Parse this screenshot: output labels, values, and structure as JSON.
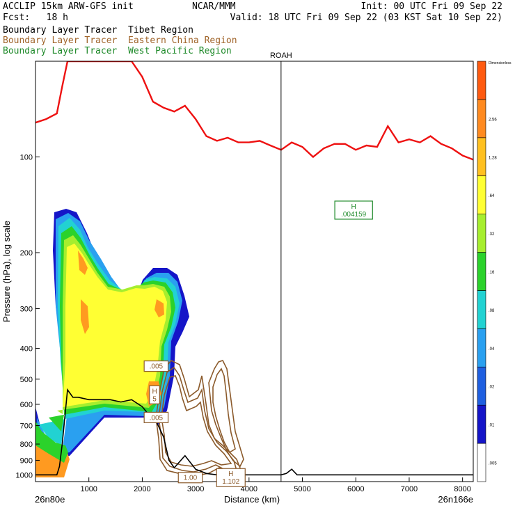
{
  "header": {
    "model": "ACCLIP 15km ARW-GFS init",
    "org": "NCAR/MMM",
    "init": "Init: 00 UTC Fri 09 Sep 22",
    "fcst": "Fcst:   18 h",
    "valid": "Valid: 18 UTC Fri 09 Sep 22 (03 KST Sat 10 Sep 22)",
    "tracers": [
      "Boundary Layer Tracer  Tibet Region",
      "Boundary Layer Tracer  Eastern China Region",
      "Boundary Layer Tracer  West Pacific Region"
    ]
  },
  "colors": {
    "tibet": "#000000",
    "eastern_china": "#8b5a2b",
    "west_pacific": "#1f8a2a",
    "tropopause": "#ee1111",
    "terrain": "#000000"
  },
  "chart_data": {
    "type": "cross-section",
    "xlabel": "Distance (km)",
    "ylabel": "Pressure (hPa), log scale",
    "xlim": [
      0,
      8200
    ],
    "ylim": [
      1050,
      50
    ],
    "yscale": "log",
    "x_ticks": [
      "1000",
      "2000",
      "3000",
      "4000",
      "5000",
      "6000",
      "7000",
      "8000"
    ],
    "y_ticks": [
      "100",
      "200",
      "300",
      "400",
      "500",
      "600",
      "700",
      "800",
      "900",
      "1000"
    ],
    "endpoints": {
      "left": "26n80e",
      "right": "26n166e"
    },
    "station": {
      "name": "ROAH",
      "x_km": 4600
    },
    "colorbar": {
      "colors": [
        "#ffffff",
        "#1515c8",
        "#1f5fe0",
        "#2aa0f0",
        "#22d2d2",
        "#2bd22b",
        "#a6ee2e",
        "#ffff33",
        "#ffc020",
        "#ff8a20",
        "#ff5a10"
      ],
      "labels": [
        ".005",
        ".01",
        ".02",
        ".04",
        ".08",
        ".16",
        ".32",
        ".64",
        "1.28",
        "2.56",
        "Dimensionless"
      ]
    },
    "annotations": [
      {
        "label": "H\n.004159",
        "x_km": 5960,
        "p_hpa": 147,
        "series": "West Pacific"
      },
      {
        "label": ".005",
        "x_km": 2260,
        "p_hpa": 455,
        "series": "Eastern China"
      },
      {
        "label": ".005",
        "x_km": 2260,
        "p_hpa": 660,
        "series": "Eastern China"
      },
      {
        "label": "H\n1.102",
        "x_km": 3660,
        "p_hpa": 1020,
        "series": "Eastern China"
      },
      {
        "label": "1.00",
        "x_km": 2900,
        "p_hpa": 1020,
        "series": "Eastern China"
      },
      {
        "label": "H\n5",
        "x_km": 2230,
        "p_hpa": 560,
        "series": "Eastern China"
      }
    ],
    "series": [
      {
        "name": "Tropopause",
        "points": [
          [
            0,
            78
          ],
          [
            200,
            76
          ],
          [
            400,
            73
          ],
          [
            500,
            60
          ],
          [
            600,
            50
          ],
          [
            800,
            50
          ],
          [
            1000,
            50
          ],
          [
            1200,
            50
          ],
          [
            1400,
            50
          ],
          [
            1600,
            50
          ],
          [
            1800,
            50
          ],
          [
            2000,
            56
          ],
          [
            2200,
            67
          ],
          [
            2400,
            70
          ],
          [
            2600,
            72
          ],
          [
            2800,
            69
          ],
          [
            3000,
            76
          ],
          [
            3200,
            86
          ],
          [
            3400,
            89
          ],
          [
            3600,
            87
          ],
          [
            3800,
            90
          ],
          [
            4000,
            90
          ],
          [
            4200,
            89
          ],
          [
            4400,
            92
          ],
          [
            4600,
            95
          ],
          [
            4800,
            90
          ],
          [
            5000,
            93
          ],
          [
            5200,
            100
          ],
          [
            5400,
            94
          ],
          [
            5600,
            91
          ],
          [
            5800,
            91
          ],
          [
            6000,
            95
          ],
          [
            6200,
            92
          ],
          [
            6400,
            93
          ],
          [
            6600,
            80
          ],
          [
            6800,
            90
          ],
          [
            7000,
            88
          ],
          [
            7200,
            90
          ],
          [
            7400,
            86
          ],
          [
            7600,
            91
          ],
          [
            7800,
            94
          ],
          [
            8000,
            99
          ],
          [
            8200,
            102
          ]
        ]
      },
      {
        "name": "Terrain",
        "points": [
          [
            0,
            1000
          ],
          [
            200,
            1000
          ],
          [
            400,
            1000
          ],
          [
            450,
            940
          ],
          [
            500,
            800
          ],
          [
            600,
            540
          ],
          [
            700,
            570
          ],
          [
            800,
            570
          ],
          [
            1000,
            580
          ],
          [
            1200,
            580
          ],
          [
            1400,
            580
          ],
          [
            1600,
            590
          ],
          [
            1800,
            580
          ],
          [
            2000,
            610
          ],
          [
            2100,
            640
          ],
          [
            2200,
            650
          ],
          [
            2300,
            700
          ],
          [
            2400,
            760
          ],
          [
            2500,
            900
          ],
          [
            2600,
            950
          ],
          [
            2800,
            870
          ],
          [
            3000,
            960
          ],
          [
            3200,
            990
          ],
          [
            3400,
            1000
          ],
          [
            3600,
            1000
          ],
          [
            4000,
            1000
          ],
          [
            4200,
            1000
          ],
          [
            4400,
            1000
          ],
          [
            4600,
            1000
          ],
          [
            4700,
            990
          ],
          [
            4800,
            960
          ],
          [
            4900,
            1000
          ],
          [
            5000,
            1000
          ],
          [
            6000,
            1000
          ],
          [
            7000,
            1000
          ],
          [
            8200,
            1000
          ]
        ]
      }
    ]
  }
}
